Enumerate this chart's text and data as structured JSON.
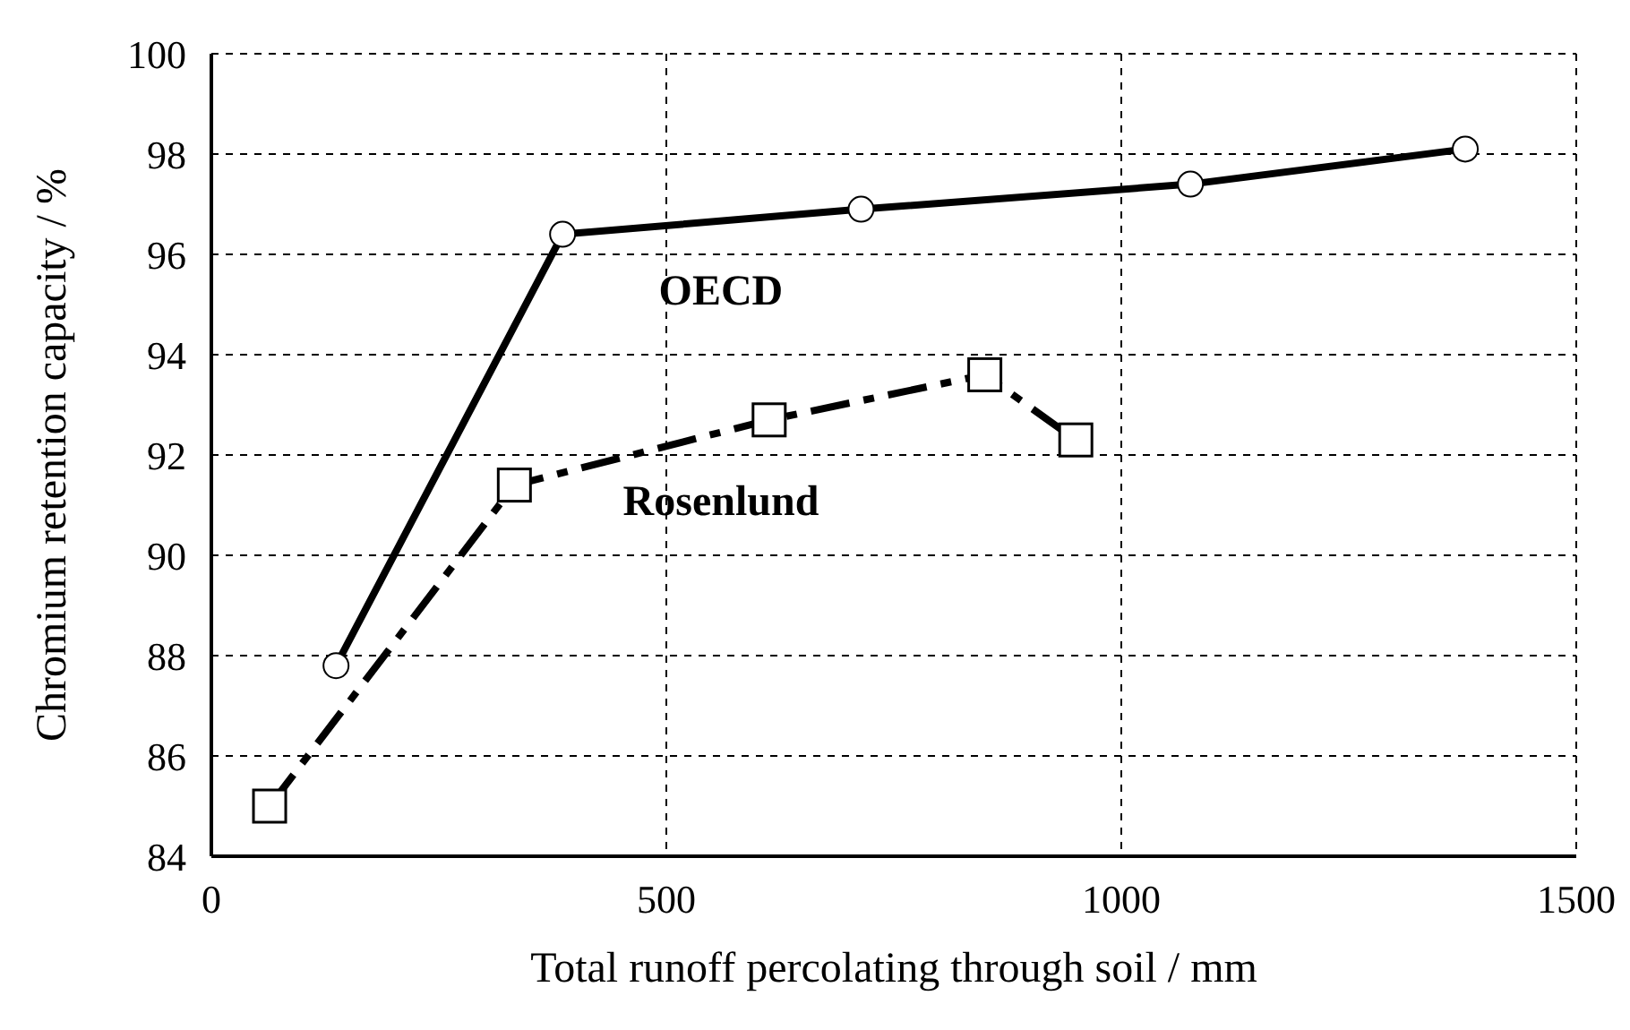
{
  "chart_data": {
    "type": "line",
    "xlabel": "Total runoff percolating through soil / mm",
    "ylabel": "Chromium retention capacity / %",
    "xlim": [
      0,
      1500
    ],
    "xticks": [
      0,
      500,
      1000,
      1500
    ],
    "ylim": [
      84,
      100
    ],
    "yticks": [
      84,
      86,
      88,
      90,
      92,
      94,
      96,
      98,
      100
    ],
    "grid": true,
    "series": [
      {
        "name": "OECD",
        "color": "#000000",
        "marker": "circle",
        "line_style": "solid",
        "x": [
          137,
          386,
          714,
          1076,
          1378
        ],
        "values": [
          87.8,
          96.4,
          96.9,
          97.4,
          98.1
        ]
      },
      {
        "name": "Rosenlund",
        "color": "#000000",
        "marker": "square",
        "line_style": "dashed",
        "x": [
          64,
          333,
          613,
          850,
          950
        ],
        "values": [
          85.0,
          91.4,
          92.7,
          93.6,
          92.3
        ]
      }
    ]
  }
}
